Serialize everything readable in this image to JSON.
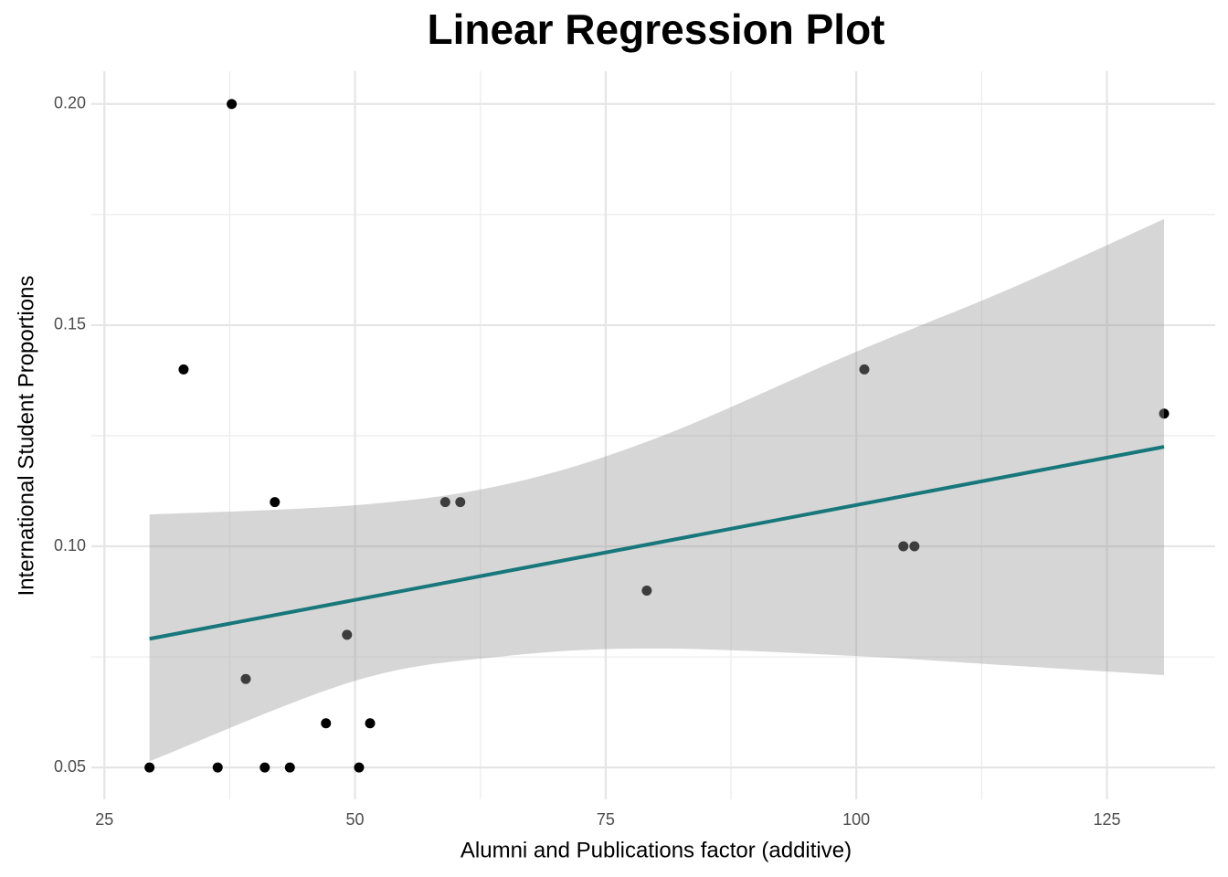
{
  "chart_data": {
    "type": "scatter",
    "title": "Linear Regression Plot",
    "x_label": "Alumni and Publications factor (additive)",
    "y_label": "International Student Proportions",
    "x": [
      29.5,
      37.7,
      32.9,
      42.0,
      59.0,
      60.5,
      39.1,
      49.2,
      47.1,
      51.5,
      36.3,
      41.0,
      43.5,
      50.4,
      79.1,
      100.8,
      104.7,
      105.8,
      130.7
    ],
    "values": [
      0.05,
      0.2,
      0.14,
      0.11,
      0.11,
      0.11,
      0.07,
      0.08,
      0.06,
      0.06,
      0.05,
      0.05,
      0.05,
      0.05,
      0.09,
      0.14,
      0.1,
      0.1,
      0.13
    ],
    "color": "#000000",
    "fit": {
      "x": [
        29.5,
        130.7
      ],
      "values": [
        0.0791,
        0.1225
      ],
      "color": "#17777a"
    },
    "band": {
      "x": [
        29.5,
        50,
        65,
        80,
        100,
        115,
        130.7
      ],
      "upper": [
        0.1072,
        0.1093,
        0.114,
        0.1244,
        0.144,
        0.1579,
        0.174
      ],
      "lower": [
        0.0514,
        0.0696,
        0.0752,
        0.0769,
        0.0752,
        0.0731,
        0.0709
      ],
      "color": "#999999"
    },
    "xlim": [
      23.7,
      135.8
    ],
    "ylim": [
      0.0428,
      0.2074
    ],
    "xticks": [
      25,
      50,
      75,
      100,
      125
    ],
    "yticks": [
      {
        "value": 0.05,
        "label": "0.05"
      },
      {
        "value": 0.1,
        "label": "0.10"
      },
      {
        "value": 0.15,
        "label": "0.15"
      },
      {
        "value": 0.2,
        "label": "0.20"
      }
    ],
    "xminor": [
      37.5,
      62.5,
      87.5,
      112.5
    ],
    "yminor": [
      0.075,
      0.125,
      0.175
    ],
    "grid": true
  }
}
